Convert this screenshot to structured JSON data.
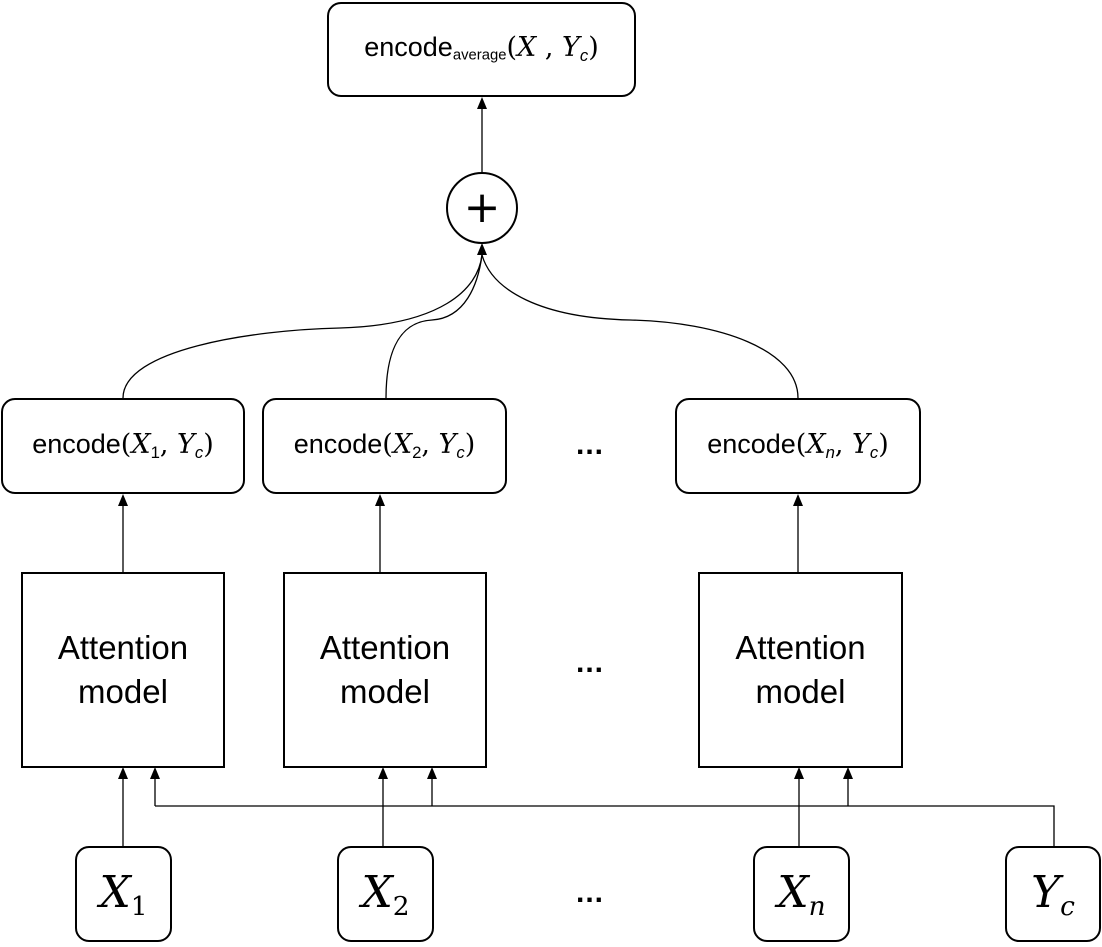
{
  "output": {
    "prefix": "encode",
    "subscript": "average",
    "open": "(",
    "var1": "X",
    "comma": " , ",
    "var2": "Y",
    "var2_sub": "c",
    "close": ")"
  },
  "sum": {
    "symbol": "+"
  },
  "encodes": [
    {
      "prefix": "encode",
      "open": "(",
      "var1": "X",
      "var1_sub": "1",
      "comma": ", ",
      "var2": "Y",
      "var2_sub": "c",
      "close": ")"
    },
    {
      "prefix": "encode",
      "open": "(",
      "var1": "X",
      "var1_sub": "2",
      "comma": ", ",
      "var2": "Y",
      "var2_sub": "c",
      "close": ")"
    },
    {
      "prefix": "encode",
      "open": "(",
      "var1": "X",
      "var1_sub": "n",
      "comma": ", ",
      "var2": "Y",
      "var2_sub": "c",
      "close": ")"
    }
  ],
  "attention": [
    {
      "label": "Attention\nmodel"
    },
    {
      "label": "Attention\nmodel"
    },
    {
      "label": "Attention\nmodel"
    }
  ],
  "inputs": [
    {
      "var": "X",
      "sub": "1"
    },
    {
      "var": "X",
      "sub": "2"
    },
    {
      "var": "X",
      "sub": "n"
    },
    {
      "var": "Y",
      "sub": "c"
    }
  ],
  "ellipsis": "...",
  "colors": {
    "stroke": "#000000",
    "background": "#ffffff"
  }
}
